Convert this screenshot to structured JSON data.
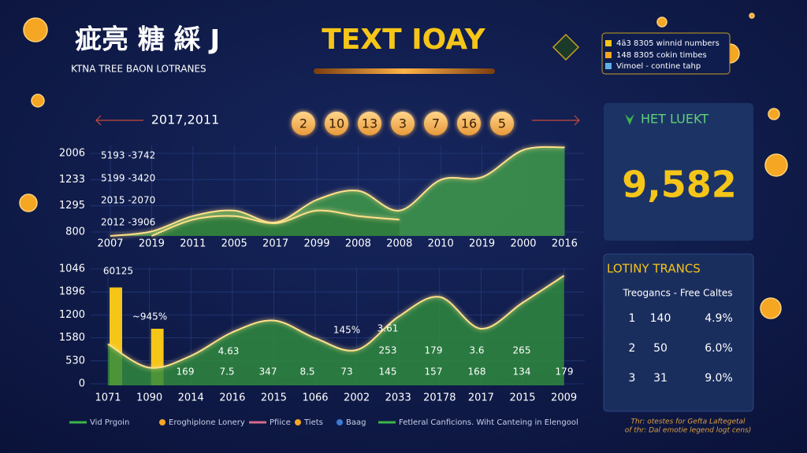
{
  "header": {
    "title": "疵亮 糖 綵 J",
    "subtitle": "KTNA TREE BAON LOTRANES",
    "center_title": "TEXT IOAY",
    "key": [
      "4ä3 8305 winnid numbers",
      "148 8305 cokin timbes",
      "Vimoel - contine tahp"
    ]
  },
  "draw": {
    "date_label": "2017,2011",
    "numbers": [
      2,
      10,
      13,
      3,
      7,
      16,
      5
    ]
  },
  "jackpot": {
    "title": "HET LUEKT",
    "value": "9,582"
  },
  "trends": {
    "title": "LOTINY TRANCS",
    "header": "Treogancs - Free Caltes",
    "rows": [
      [
        "1",
        "140",
        "4.9%"
      ],
      [
        "2",
        "50",
        "6.0%"
      ],
      [
        "3",
        "31",
        "9.0%"
      ]
    ]
  },
  "footnote": [
    "Thr: otestes for Gefta Laftegetal",
    "of thr: Dal emotie legend logt cens)"
  ],
  "legend": [
    {
      "name": "Vid Prgoin",
      "color": "#3bb54a"
    },
    {
      "name": "Eroghiplone Lonery",
      "color": "#f5a623"
    },
    {
      "name": "Pfiice",
      "color": "#d46a8a"
    },
    {
      "name": "Tiets",
      "color": "#f5a623"
    },
    {
      "name": "Baag",
      "color": "#3a7bd5"
    },
    {
      "name": "Fetleral Canficions. Wiht Canteing in Elengool",
      "color": "#3bb54a"
    }
  ],
  "chart_data": [
    {
      "type": "area",
      "ylim": [
        0,
        100
      ],
      "y_labels": [
        "2006",
        "1233",
        "1295",
        "800"
      ],
      "categories": [
        "2007",
        "2019",
        "2011",
        "2005",
        "2017",
        "2099",
        "2008",
        "2008",
        "2010",
        "2019",
        "2000",
        "2016"
      ],
      "annotations": [
        "5193 -3742",
        "5199 -3420",
        "2015 -2070",
        "2012 -3906"
      ],
      "series": [
        {
          "color": "#3f9a4a",
          "values": [
            0,
            5,
            22,
            28,
            15,
            40,
            50,
            28,
            62,
            65,
            95,
            98
          ]
        },
        {
          "color": "#2f7a3c",
          "values": [
            null,
            0,
            18,
            22,
            14,
            28,
            22,
            18,
            null,
            null,
            null,
            null
          ]
        }
      ]
    },
    {
      "type": "area",
      "ylim": [
        0,
        100
      ],
      "y_labels": [
        "1046",
        "1896",
        "1200",
        "1580",
        "530",
        "0"
      ],
      "categories": [
        "1071",
        "1090",
        "2014",
        "2016",
        "2015",
        "1066",
        "2002",
        "2033",
        "20178",
        "2017",
        "2015",
        "2009"
      ],
      "annotations": [
        "60125",
        "~945%",
        "169",
        "7.5",
        "347",
        "8.5",
        "73",
        "145",
        "157",
        "168",
        "134",
        "179",
        "4.63",
        "145%",
        "3.61",
        "253",
        "179",
        "3.6",
        "265"
      ],
      "bars": {
        "color": "#f5c518",
        "values": [
          83,
          48,
          null,
          null,
          null,
          null,
          null,
          null,
          null,
          null,
          null,
          null
        ]
      },
      "series": [
        {
          "color": "#2f8a3e",
          "values": [
            35,
            15,
            25,
            45,
            55,
            40,
            30,
            58,
            75,
            48,
            70,
            93
          ]
        }
      ]
    }
  ]
}
